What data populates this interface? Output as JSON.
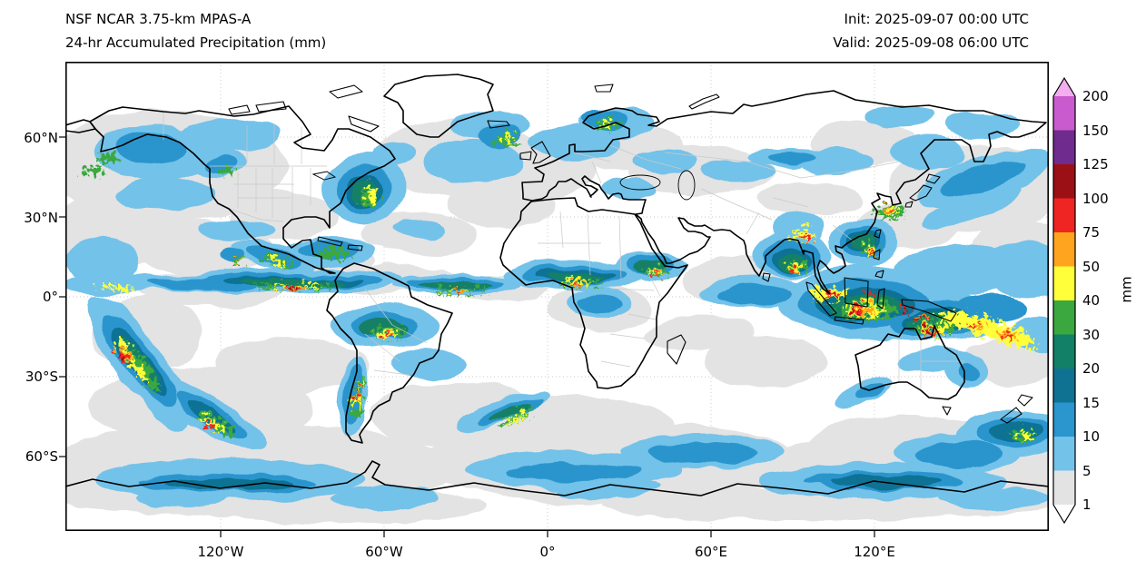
{
  "header": {
    "model": "NSF NCAR 3.75-km MPAS-A",
    "product": "24-hr Accumulated Precipitation (mm)",
    "init": "Init: 2025-09-07 00:00 UTC",
    "valid": "Valid: 2025-09-08 06:00 UTC"
  },
  "axes": {
    "lat_ticks": [
      "60°N",
      "30°N",
      "0°",
      "30°S",
      "60°S"
    ],
    "lon_ticks": [
      "120°W",
      "60°W",
      "0°",
      "60°E",
      "120°E"
    ]
  },
  "colorbar_label": "mm",
  "chart_data": {
    "type": "heatmap",
    "title": "24-hr Accumulated Precipitation (mm)",
    "model": "NSF NCAR 3.75-km MPAS-A",
    "init_time": "2025-09-07 00:00 UTC",
    "valid_time": "2025-09-08 06:00 UTC",
    "accumulation_hours": 24,
    "units": "mm",
    "projection": "global equirectangular (plate carree) world map with coastlines and country borders",
    "x_axis_ticks": [
      "120°W",
      "60°W",
      "0°",
      "60°E",
      "120°E"
    ],
    "y_axis_ticks": [
      "60°N",
      "30°N",
      "0°",
      "30°S",
      "60°S"
    ],
    "colorbar": {
      "label": "mm",
      "levels": [
        1,
        5,
        10,
        15,
        20,
        30,
        40,
        50,
        75,
        100,
        125,
        150,
        200
      ],
      "extend": "both",
      "orientation": "vertical-right",
      "segment_colors": [
        "#ffffff",
        "#e3e3e3",
        "#73c2e9",
        "#2b95cd",
        "#0f7293",
        "#128066",
        "#3aa83f",
        "#ffff3a",
        "#ffa41e",
        "#ee2522",
        "#9b1015",
        "#6f2b8d",
        "#ca5bce",
        "#f2aeee"
      ]
    },
    "notable_features": [
      "Heavy convective rainfall (>100 mm) over the Maritime Continent, New Guinea and the western Pacific",
      "Speckled ITCZ rain bands across the equatorial east Pacific, Atlantic and African Sahel",
      "Intense South Pacific Convergence Zone band near the date line (left edge of map)",
      "Monsoon rainfall over India, the Bay of Bengal, Indochina and south China coast",
      "Mid-latitude frontal bands over the North Atlantic, North Pacific, Scandinavia and the Southern Ocean",
      "Strong streak off the U.S. East Coast and near Iceland",
      "Light 1-5 mm stratiform precipitation shown in gray over the storm-track oceans"
    ]
  }
}
